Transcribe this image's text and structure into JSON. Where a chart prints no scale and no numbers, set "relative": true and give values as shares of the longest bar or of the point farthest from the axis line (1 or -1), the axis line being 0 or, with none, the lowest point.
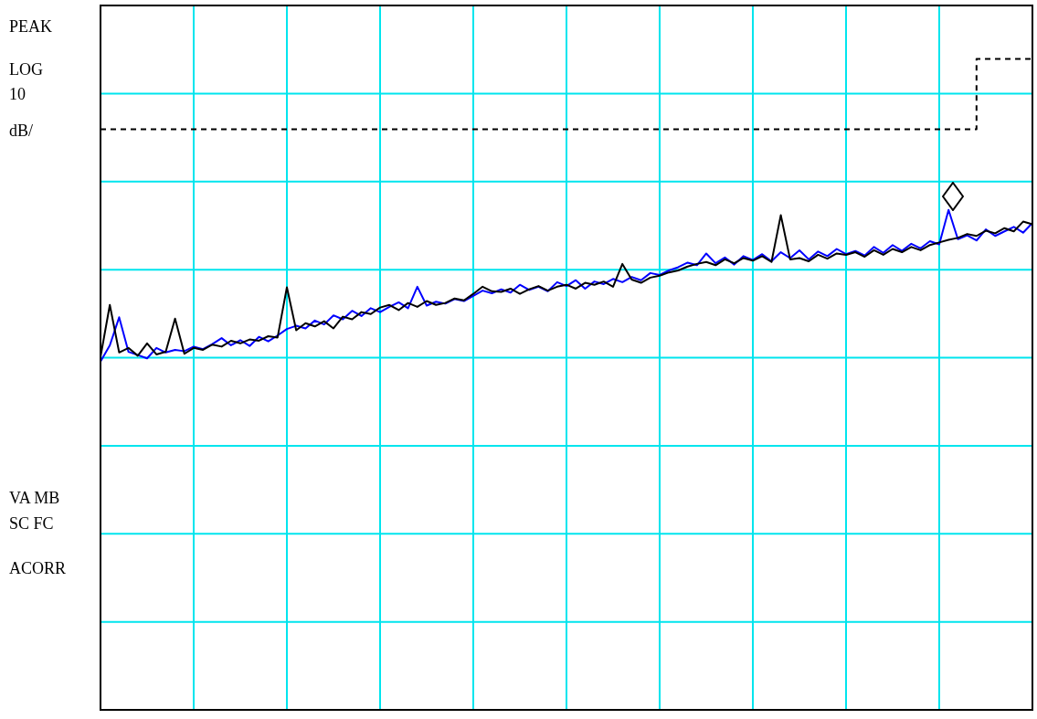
{
  "chart_data": {
    "type": "line",
    "relative": true,
    "grid": true,
    "legend": false,
    "marker": "none",
    "categories": [
      null,
      null,
      null,
      null,
      null,
      null,
      null,
      null,
      null,
      null,
      null,
      null,
      null,
      null,
      null,
      null,
      null,
      null,
      null,
      null,
      null,
      null,
      null,
      null,
      null,
      null,
      null,
      null,
      null,
      null,
      null,
      null,
      null,
      null,
      null,
      null,
      null,
      null,
      null,
      null,
      null,
      null,
      null,
      null,
      null,
      null,
      null,
      null,
      null,
      null,
      null,
      null,
      null,
      null,
      null,
      null,
      null,
      null,
      null,
      null,
      null,
      null,
      null,
      null,
      null,
      null,
      null,
      null,
      null,
      null,
      null,
      null,
      null,
      null,
      null,
      null,
      null,
      null,
      null,
      null,
      null,
      null,
      null,
      null,
      null,
      null,
      null,
      null,
      null,
      null,
      null,
      null,
      null,
      null,
      null,
      null,
      null,
      null,
      null,
      null,
      null
    ],
    "annotations": [
      "PEAK",
      "LOG",
      "10",
      "dB/",
      "VA MB",
      "SC FC",
      "ACORR"
    ],
    "series": [
      {
        "type": "step",
        "color": "#000000",
        "line_style": "dashed",
        "values": [
          0.892,
          0.892,
          0.892,
          0.892,
          0.892,
          0.892,
          0.892,
          0.892,
          0.892,
          0.892,
          0.892,
          0.892,
          0.892,
          0.892,
          0.892,
          0.892,
          0.892,
          0.892,
          0.892,
          0.892,
          0.892,
          0.892,
          0.892,
          0.892,
          0.892,
          0.892,
          0.892,
          0.892,
          0.892,
          0.892,
          0.892,
          0.892,
          0.892,
          0.892,
          0.892,
          0.892,
          0.892,
          0.892,
          0.892,
          0.892,
          0.892,
          0.892,
          0.892,
          0.892,
          0.892,
          0.892,
          0.892,
          0.892,
          0.892,
          0.892,
          0.892,
          0.892,
          0.892,
          0.892,
          0.892,
          0.892,
          0.892,
          0.892,
          0.892,
          0.892,
          0.892,
          0.892,
          0.892,
          0.892,
          0.892,
          0.892,
          0.892,
          0.892,
          0.892,
          0.892,
          0.892,
          0.892,
          0.892,
          0.892,
          0.892,
          0.892,
          0.892,
          0.892,
          0.892,
          0.892,
          0.892,
          0.892,
          0.892,
          0.892,
          0.892,
          0.892,
          0.892,
          0.892,
          0.892,
          0.892,
          0.892,
          0.892,
          0.892,
          0.892,
          0.892,
          1,
          1,
          1,
          1,
          1,
          1
        ]
      },
      {
        "color": "#000000",
        "values": [
          0.542,
          0.622,
          0.549,
          0.556,
          0.544,
          0.563,
          0.546,
          0.55,
          0.601,
          0.547,
          0.556,
          0.553,
          0.561,
          0.558,
          0.567,
          0.563,
          0.569,
          0.567,
          0.574,
          0.572,
          0.649,
          0.583,
          0.594,
          0.589,
          0.597,
          0.586,
          0.604,
          0.6,
          0.611,
          0.608,
          0.618,
          0.622,
          0.614,
          0.625,
          0.619,
          0.628,
          0.622,
          0.625,
          0.632,
          0.629,
          0.639,
          0.65,
          0.643,
          0.642,
          0.647,
          0.639,
          0.646,
          0.651,
          0.644,
          0.65,
          0.653,
          0.647,
          0.656,
          0.653,
          0.658,
          0.65,
          0.685,
          0.661,
          0.656,
          0.664,
          0.667,
          0.672,
          0.675,
          0.681,
          0.685,
          0.688,
          0.683,
          0.692,
          0.686,
          0.694,
          0.69,
          0.697,
          0.688,
          0.76,
          0.692,
          0.694,
          0.689,
          0.699,
          0.693,
          0.701,
          0.699,
          0.703,
          0.696,
          0.706,
          0.699,
          0.708,
          0.703,
          0.711,
          0.706,
          0.714,
          0.718,
          0.722,
          0.725,
          0.731,
          0.728,
          0.736,
          0.732,
          0.74,
          0.735,
          0.75,
          0.746
        ]
      },
      {
        "color": "#0000ff",
        "values": [
          0.535,
          0.56,
          0.603,
          0.55,
          0.545,
          0.54,
          0.556,
          0.549,
          0.553,
          0.551,
          0.558,
          0.554,
          0.562,
          0.571,
          0.56,
          0.568,
          0.559,
          0.573,
          0.566,
          0.575,
          0.585,
          0.59,
          0.586,
          0.598,
          0.592,
          0.606,
          0.6,
          0.613,
          0.605,
          0.617,
          0.611,
          0.619,
          0.626,
          0.617,
          0.65,
          0.621,
          0.627,
          0.624,
          0.631,
          0.628,
          0.636,
          0.644,
          0.64,
          0.646,
          0.641,
          0.653,
          0.645,
          0.65,
          0.643,
          0.657,
          0.651,
          0.66,
          0.647,
          0.658,
          0.654,
          0.662,
          0.657,
          0.665,
          0.66,
          0.671,
          0.668,
          0.675,
          0.68,
          0.687,
          0.683,
          0.701,
          0.686,
          0.695,
          0.684,
          0.697,
          0.691,
          0.7,
          0.689,
          0.703,
          0.694,
          0.706,
          0.692,
          0.704,
          0.697,
          0.708,
          0.7,
          0.705,
          0.698,
          0.711,
          0.702,
          0.714,
          0.705,
          0.716,
          0.709,
          0.72,
          0.715,
          0.768,
          0.723,
          0.729,
          0.721,
          0.738,
          0.728,
          0.735,
          0.742,
          0.733,
          0.748
        ]
      }
    ]
  }
}
